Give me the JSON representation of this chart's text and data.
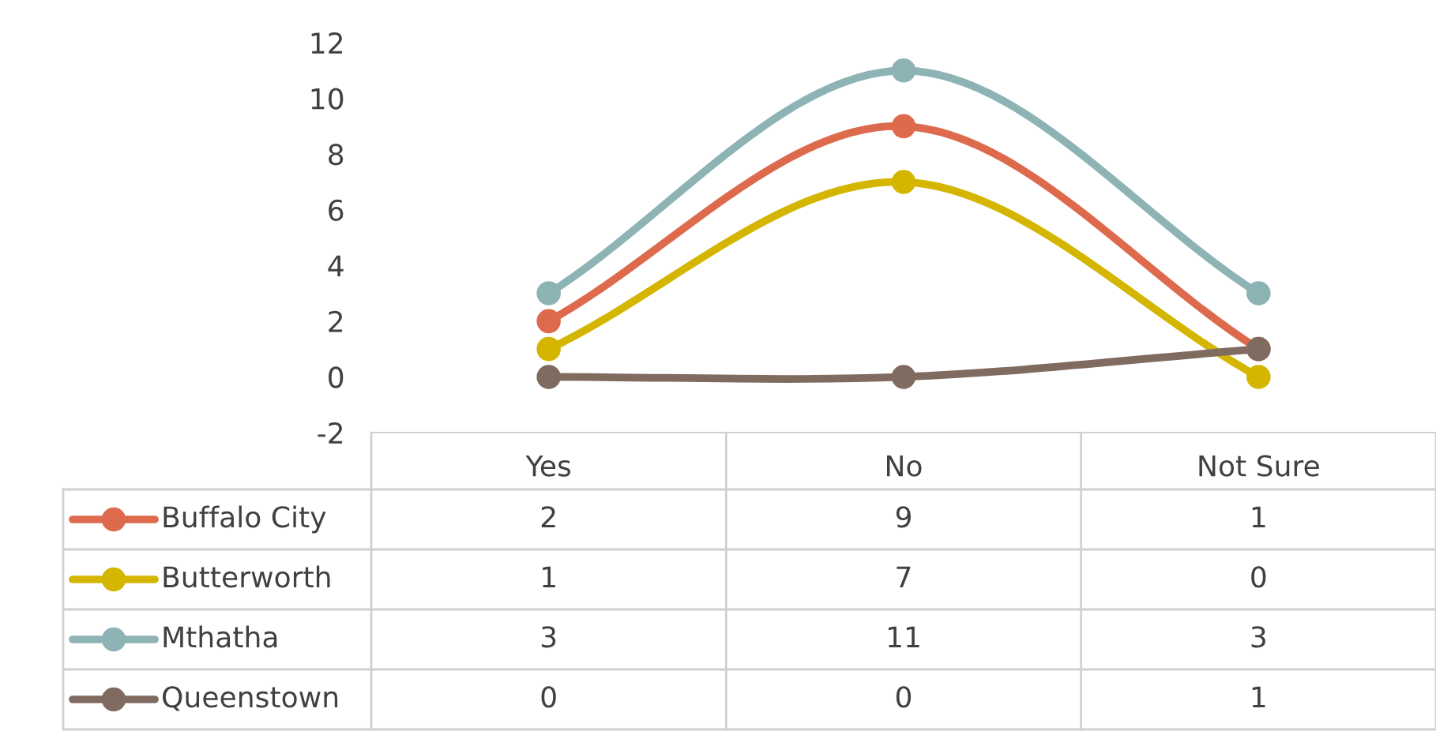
{
  "chart_data": {
    "type": "line",
    "categories": [
      "Yes",
      "No",
      "Not Sure"
    ],
    "series": [
      {
        "name": "Buffalo City",
        "color": "#dd6a4d",
        "values": [
          2,
          9,
          1
        ]
      },
      {
        "name": "Butterworth",
        "color": "#d4b600",
        "values": [
          1,
          7,
          0
        ]
      },
      {
        "name": "Mthatha",
        "color": "#8db3b5",
        "values": [
          3,
          11,
          3
        ]
      },
      {
        "name": "Queenstown",
        "color": "#806b60",
        "values": [
          0,
          0,
          1
        ]
      }
    ],
    "ylim": [
      -2,
      12
    ],
    "yticks": [
      -2,
      0,
      2,
      4,
      6,
      8,
      10,
      12
    ],
    "grid": false,
    "legend": "bottom",
    "marker": "circle",
    "line_style": "solid",
    "data_labels": true
  }
}
